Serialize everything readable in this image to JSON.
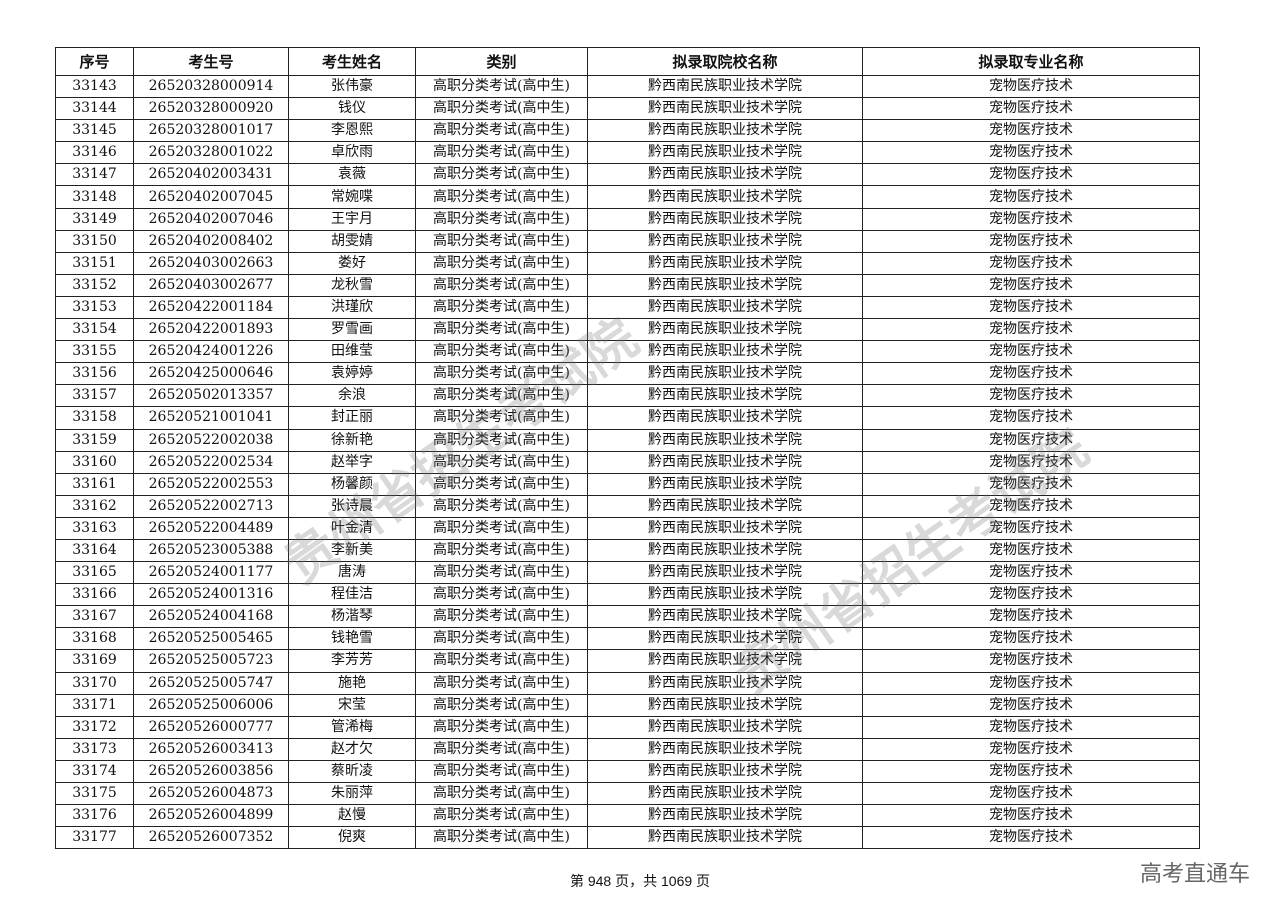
{
  "table": {
    "headers": [
      "序号",
      "考生号",
      "考生姓名",
      "类别",
      "拟录取院校名称",
      "拟录取专业名称"
    ],
    "rows": [
      [
        "33143",
        "26520328000914",
        "张伟豪",
        "高职分类考试(高中生)",
        "黔西南民族职业技术学院",
        "宠物医疗技术"
      ],
      [
        "33144",
        "26520328000920",
        "钱仪",
        "高职分类考试(高中生)",
        "黔西南民族职业技术学院",
        "宠物医疗技术"
      ],
      [
        "33145",
        "26520328001017",
        "李恩熙",
        "高职分类考试(高中生)",
        "黔西南民族职业技术学院",
        "宠物医疗技术"
      ],
      [
        "33146",
        "26520328001022",
        "卓欣雨",
        "高职分类考试(高中生)",
        "黔西南民族职业技术学院",
        "宠物医疗技术"
      ],
      [
        "33147",
        "26520402003431",
        "袁薇",
        "高职分类考试(高中生)",
        "黔西南民族职业技术学院",
        "宠物医疗技术"
      ],
      [
        "33148",
        "26520402007045",
        "常婉喋",
        "高职分类考试(高中生)",
        "黔西南民族职业技术学院",
        "宠物医疗技术"
      ],
      [
        "33149",
        "26520402007046",
        "王宇月",
        "高职分类考试(高中生)",
        "黔西南民族职业技术学院",
        "宠物医疗技术"
      ],
      [
        "33150",
        "26520402008402",
        "胡雯婧",
        "高职分类考试(高中生)",
        "黔西南民族职业技术学院",
        "宠物医疗技术"
      ],
      [
        "33151",
        "26520403002663",
        "娄好",
        "高职分类考试(高中生)",
        "黔西南民族职业技术学院",
        "宠物医疗技术"
      ],
      [
        "33152",
        "26520403002677",
        "龙秋雪",
        "高职分类考试(高中生)",
        "黔西南民族职业技术学院",
        "宠物医疗技术"
      ],
      [
        "33153",
        "26520422001184",
        "洪瑾欣",
        "高职分类考试(高中生)",
        "黔西南民族职业技术学院",
        "宠物医疗技术"
      ],
      [
        "33154",
        "26520422001893",
        "罗雪画",
        "高职分类考试(高中生)",
        "黔西南民族职业技术学院",
        "宠物医疗技术"
      ],
      [
        "33155",
        "26520424001226",
        "田维莹",
        "高职分类考试(高中生)",
        "黔西南民族职业技术学院",
        "宠物医疗技术"
      ],
      [
        "33156",
        "26520425000646",
        "袁婷婷",
        "高职分类考试(高中生)",
        "黔西南民族职业技术学院",
        "宠物医疗技术"
      ],
      [
        "33157",
        "26520502013357",
        "余浪",
        "高职分类考试(高中生)",
        "黔西南民族职业技术学院",
        "宠物医疗技术"
      ],
      [
        "33158",
        "26520521001041",
        "封正丽",
        "高职分类考试(高中生)",
        "黔西南民族职业技术学院",
        "宠物医疗技术"
      ],
      [
        "33159",
        "26520522002038",
        "徐新艳",
        "高职分类考试(高中生)",
        "黔西南民族职业技术学院",
        "宠物医疗技术"
      ],
      [
        "33160",
        "26520522002534",
        "赵举字",
        "高职分类考试(高中生)",
        "黔西南民族职业技术学院",
        "宠物医疗技术"
      ],
      [
        "33161",
        "26520522002553",
        "杨馨颜",
        "高职分类考试(高中生)",
        "黔西南民族职业技术学院",
        "宠物医疗技术"
      ],
      [
        "33162",
        "26520522002713",
        "张诗晨",
        "高职分类考试(高中生)",
        "黔西南民族职业技术学院",
        "宠物医疗技术"
      ],
      [
        "33163",
        "26520522004489",
        "叶金清",
        "高职分类考试(高中生)",
        "黔西南民族职业技术学院",
        "宠物医疗技术"
      ],
      [
        "33164",
        "26520523005388",
        "李新美",
        "高职分类考试(高中生)",
        "黔西南民族职业技术学院",
        "宠物医疗技术"
      ],
      [
        "33165",
        "26520524001177",
        "唐涛",
        "高职分类考试(高中生)",
        "黔西南民族职业技术学院",
        "宠物医疗技术"
      ],
      [
        "33166",
        "26520524001316",
        "程佳洁",
        "高职分类考试(高中生)",
        "黔西南民族职业技术学院",
        "宠物医疗技术"
      ],
      [
        "33167",
        "26520524004168",
        "杨湝琴",
        "高职分类考试(高中生)",
        "黔西南民族职业技术学院",
        "宠物医疗技术"
      ],
      [
        "33168",
        "26520525005465",
        "钱艳雪",
        "高职分类考试(高中生)",
        "黔西南民族职业技术学院",
        "宠物医疗技术"
      ],
      [
        "33169",
        "26520525005723",
        "李芳芳",
        "高职分类考试(高中生)",
        "黔西南民族职业技术学院",
        "宠物医疗技术"
      ],
      [
        "33170",
        "26520525005747",
        "施艳",
        "高职分类考试(高中生)",
        "黔西南民族职业技术学院",
        "宠物医疗技术"
      ],
      [
        "33171",
        "26520525006006",
        "宋莹",
        "高职分类考试(高中生)",
        "黔西南民族职业技术学院",
        "宠物医疗技术"
      ],
      [
        "33172",
        "26520526000777",
        "管浠梅",
        "高职分类考试(高中生)",
        "黔西南民族职业技术学院",
        "宠物医疗技术"
      ],
      [
        "33173",
        "26520526003413",
        "赵才欠",
        "高职分类考试(高中生)",
        "黔西南民族职业技术学院",
        "宠物医疗技术"
      ],
      [
        "33174",
        "26520526003856",
        "蔡昕凌",
        "高职分类考试(高中生)",
        "黔西南民族职业技术学院",
        "宠物医疗技术"
      ],
      [
        "33175",
        "26520526004873",
        "朱丽萍",
        "高职分类考试(高中生)",
        "黔西南民族职业技术学院",
        "宠物医疗技术"
      ],
      [
        "33176",
        "26520526004899",
        "赵慢",
        "高职分类考试(高中生)",
        "黔西南民族职业技术学院",
        "宠物医疗技术"
      ],
      [
        "33177",
        "26520526007352",
        "倪爽",
        "高职分类考试(高中生)",
        "黔西南民族职业技术学院",
        "宠物医疗技术"
      ]
    ]
  },
  "footer": {
    "page_text": "第 948 页，共 1069 页"
  },
  "brand": "高考直通车",
  "watermark": "贵州省招生考试院"
}
